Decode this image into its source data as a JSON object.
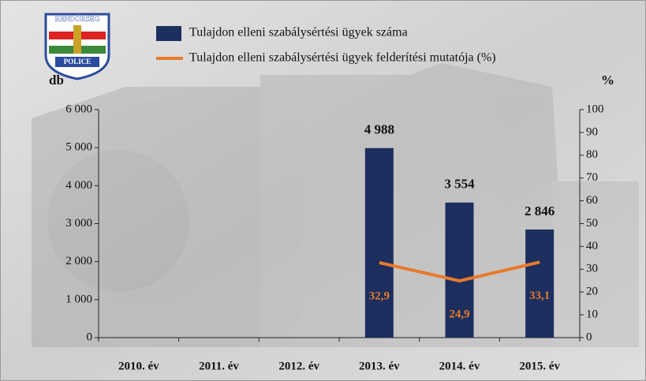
{
  "logo": {
    "top": "RENDŐRSÉG",
    "bottom": "POLICE"
  },
  "chart_data": {
    "type": "bar-line",
    "categories": [
      "2010. év",
      "2011. év",
      "2012. év",
      "2013. év",
      "2014. év",
      "2015. év"
    ],
    "series": [
      {
        "name": "Tulajdon elleni szabálysértési ügyek száma",
        "type": "bar",
        "color": "#1c2f5e",
        "values": [
          null,
          null,
          null,
          4988,
          3554,
          2846
        ],
        "value_labels": [
          null,
          null,
          null,
          "4 988",
          "3 554",
          "2 846"
        ]
      },
      {
        "name": "Tulajdon elleni szabálysértési ügyek felderítési mutatója (%)",
        "type": "line",
        "axis": "y2",
        "color": "#e87a2c",
        "values": [
          null,
          null,
          null,
          32.9,
          24.9,
          33.1
        ],
        "value_labels": [
          null,
          null,
          null,
          "32,9",
          "24,9",
          "33,1"
        ]
      }
    ],
    "ylabel": "db",
    "y2label": "%",
    "ylim": [
      0,
      6000
    ],
    "yticks": [
      0,
      {
        "value": 1000,
        "label": "1 000"
      },
      {
        "value": 2000,
        "label": "2 000"
      },
      {
        "value": 3000,
        "label": "3 000"
      },
      {
        "value": 4000,
        "label": "4 000"
      },
      {
        "value": 5000,
        "label": "5 000"
      },
      {
        "value": 6000,
        "label": "6 000"
      }
    ],
    "y2lim": [
      0,
      100
    ],
    "y2ticks": [
      0,
      10,
      20,
      30,
      40,
      50,
      60,
      70,
      80,
      90,
      100
    ]
  }
}
